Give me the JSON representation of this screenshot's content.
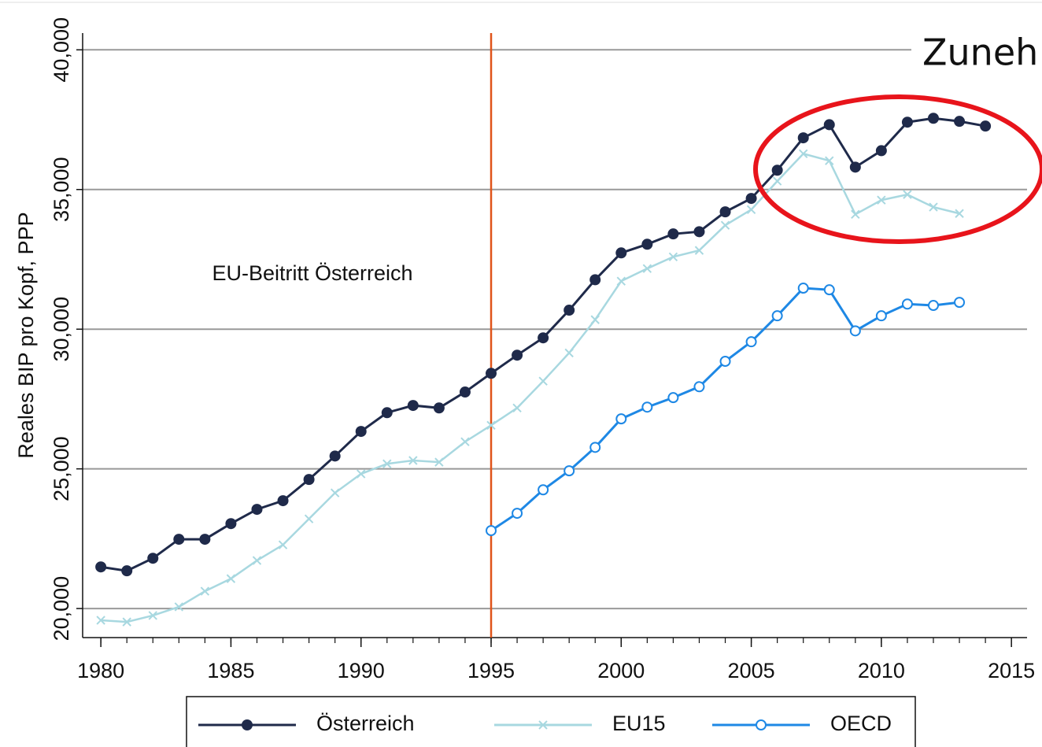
{
  "chart_data": {
    "type": "line",
    "ylabel": "Reales BIP pro Kopf, PPP",
    "x": [
      1980,
      1981,
      1982,
      1983,
      1984,
      1985,
      1986,
      1987,
      1988,
      1989,
      1990,
      1991,
      1992,
      1993,
      1994,
      1995,
      1996,
      1997,
      1998,
      1999,
      2000,
      2001,
      2002,
      2003,
      2004,
      2005,
      2006,
      2007,
      2008,
      2009,
      2010,
      2011,
      2012,
      2013,
      2014
    ],
    "series": [
      {
        "name": "Österreich",
        "color": "#1f2a4a",
        "marker": "filled-circle",
        "values": [
          21490,
          21350,
          21800,
          22480,
          22480,
          23040,
          23550,
          23860,
          24620,
          25460,
          26340,
          27010,
          27270,
          27180,
          27750,
          28420,
          29070,
          29690,
          30680,
          31770,
          32730,
          33040,
          33410,
          33490,
          34200,
          34680,
          35690,
          36850,
          37320,
          35800,
          36390,
          37410,
          37550,
          37440,
          37270
        ]
      },
      {
        "name": "EU15",
        "color": "#a8d8e0",
        "marker": "cross",
        "values": [
          19580,
          19520,
          19750,
          20060,
          20620,
          21070,
          21720,
          22280,
          23210,
          24140,
          24820,
          25180,
          25300,
          25240,
          25970,
          26560,
          27180,
          28140,
          29150,
          30340,
          31720,
          32170,
          32590,
          32820,
          33720,
          34280,
          35300,
          36280,
          36030,
          34110,
          34620,
          34820,
          34370,
          34140,
          null
        ]
      },
      {
        "name": "OECD",
        "color": "#1e88e5",
        "marker": "open-circle",
        "values": [
          null,
          null,
          null,
          null,
          null,
          null,
          null,
          null,
          null,
          null,
          null,
          null,
          null,
          null,
          null,
          22790,
          23410,
          24250,
          24930,
          25770,
          26790,
          27210,
          27550,
          27940,
          28850,
          29550,
          30480,
          31470,
          31410,
          29940,
          30480,
          30900,
          30850,
          30960,
          null
        ]
      }
    ],
    "xlim": [
      1979.3,
      2015.6
    ],
    "ylim": [
      18960,
      40600
    ],
    "xticks": [
      1980,
      1985,
      1990,
      1995,
      2000,
      2005,
      2010,
      2015
    ],
    "yticks": [
      {
        "value": 20000,
        "label": "20,000"
      },
      {
        "value": 25000,
        "label": "25,000"
      },
      {
        "value": 30000,
        "label": "30,000"
      },
      {
        "value": 35000,
        "label": "35,000"
      },
      {
        "value": 40000,
        "label": "40,000"
      }
    ],
    "grid": true,
    "legend": "bottom",
    "vline": {
      "x": 1995,
      "label": "EU-Beitritt Österreich",
      "color": "#e0541a"
    },
    "annotation": "Zuneh"
  }
}
